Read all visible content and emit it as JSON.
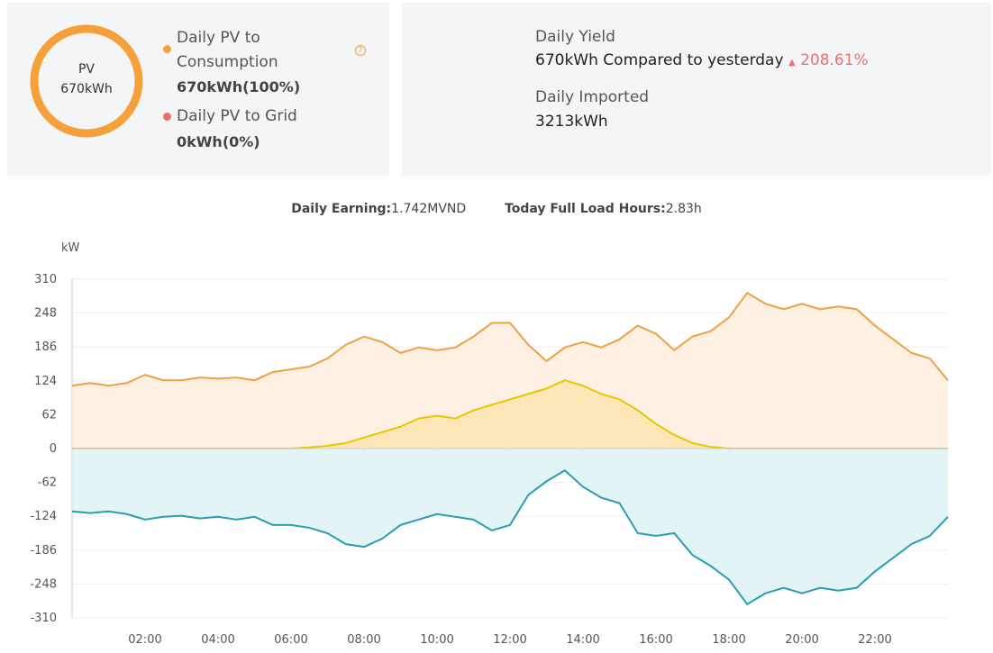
{
  "ring": {
    "label": "PV",
    "value": "670kWh"
  },
  "legend": [
    {
      "label": "Daily PV to Consumption",
      "value": "670kWh(100%)"
    },
    {
      "label": "Daily PV to Grid",
      "value": "0kWh(0%)"
    }
  ],
  "yield": {
    "label": "Daily Yield",
    "value": "670kWh",
    "compare": "Compared to yesterday",
    "change": "208.61%"
  },
  "imported": {
    "label": "Daily Imported",
    "value": "3213kWh"
  },
  "summary": [
    {
      "label": "Daily Earning:",
      "value": "1.742MVND"
    },
    {
      "label": "Today Full Load Hours:",
      "value": "2.83h"
    }
  ],
  "chart_data": {
    "type": "area",
    "y_label": "kW",
    "x": [
      0,
      0.5,
      1,
      1.5,
      2,
      2.5,
      3,
      3.5,
      4,
      4.5,
      5,
      5.5,
      6,
      6.5,
      7,
      7.5,
      8,
      8.5,
      9,
      9.5,
      10,
      10.5,
      11,
      11.5,
      12,
      12.5,
      13,
      13.5,
      14,
      14.5,
      15,
      15.5,
      16,
      16.5,
      17,
      17.5,
      18,
      18.5,
      19,
      19.5,
      20,
      20.5,
      21,
      21.5,
      22,
      22.5,
      23,
      23.5,
      24
    ],
    "series": [
      {
        "color": "#f0a040",
        "fill": "#fdebd8",
        "values": [
          115,
          120,
          115,
          120,
          135,
          125,
          125,
          130,
          128,
          130,
          125,
          140,
          145,
          150,
          165,
          190,
          205,
          195,
          175,
          185,
          180,
          185,
          205,
          230,
          230,
          190,
          160,
          185,
          195,
          185,
          200,
          225,
          210,
          180,
          205,
          215,
          240,
          285,
          265,
          255,
          265,
          255,
          260,
          255,
          225,
          200,
          175,
          165,
          125
        ]
      },
      {
        "color": "#e6c800",
        "fill": "#fbe3a8",
        "values": [
          0,
          0,
          0,
          0,
          0,
          0,
          0,
          0,
          0,
          0,
          0,
          0,
          0,
          2,
          5,
          10,
          20,
          30,
          40,
          55,
          60,
          55,
          70,
          80,
          90,
          100,
          110,
          125,
          115,
          100,
          90,
          70,
          45,
          25,
          10,
          3,
          0,
          0,
          0,
          0,
          0,
          0,
          0,
          0,
          0,
          0,
          0,
          0,
          0
        ]
      },
      {
        "color": "#2a9db0",
        "fill": "#daf0f4",
        "values": [
          -115,
          -118,
          -115,
          -120,
          -130,
          -125,
          -123,
          -128,
          -125,
          -130,
          -125,
          -140,
          -140,
          -145,
          -155,
          -175,
          -180,
          -165,
          -140,
          -130,
          -120,
          -125,
          -130,
          -150,
          -140,
          -85,
          -60,
          -40,
          -70,
          -90,
          -100,
          -155,
          -160,
          -155,
          -195,
          -215,
          -240,
          -285,
          -265,
          -255,
          -265,
          -255,
          -260,
          -255,
          -225,
          -200,
          -175,
          -160,
          -125
        ]
      }
    ],
    "xlim": [
      0,
      24
    ],
    "xticks": [
      {
        "value": 2,
        "label": "02:00"
      },
      {
        "value": 4,
        "label": "04:00"
      },
      {
        "value": 6,
        "label": "06:00"
      },
      {
        "value": 8,
        "label": "08:00"
      },
      {
        "value": 10,
        "label": "10:00"
      },
      {
        "value": 12,
        "label": "12:00"
      },
      {
        "value": 14,
        "label": "14:00"
      },
      {
        "value": 16,
        "label": "16:00"
      },
      {
        "value": 18,
        "label": "18:00"
      },
      {
        "value": 20,
        "label": "20:00"
      },
      {
        "value": 22,
        "label": "22:00"
      }
    ],
    "ylim": [
      -310,
      310
    ],
    "yticks": [
      -310,
      -248,
      -186,
      -124,
      -62,
      0,
      62,
      124,
      186,
      248,
      310
    ],
    "grid": true
  }
}
